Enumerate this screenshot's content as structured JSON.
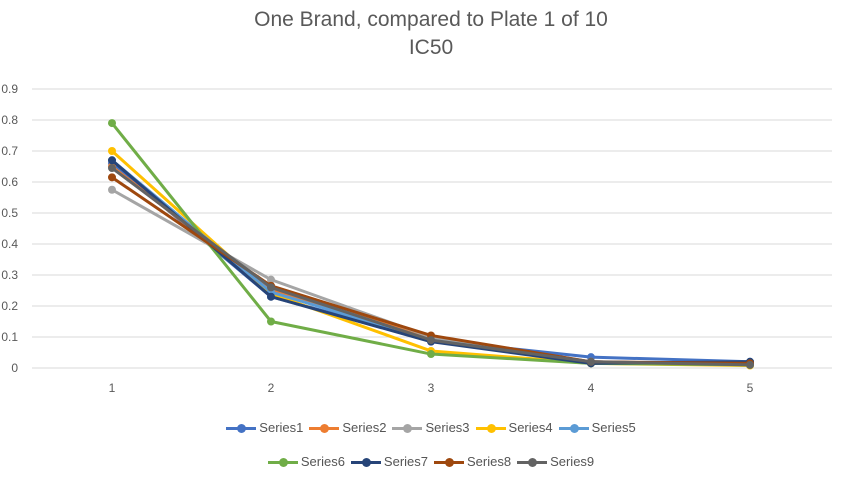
{
  "chart_data": {
    "type": "line",
    "title": "One Brand, compared to Plate 1 of 10",
    "subtitle": "IC50",
    "categories": [
      "1",
      "2",
      "3",
      "4",
      "5"
    ],
    "ylim": [
      0,
      0.9
    ],
    "yticks": [
      "0",
      "0.1",
      "0.2",
      "0.3",
      "0.4",
      "0.5",
      "0.6",
      "0.7",
      "0.8",
      "0.9"
    ],
    "grid": true,
    "legend_position": "bottom",
    "series": [
      {
        "name": "Series1",
        "color": "#4472C4",
        "values": [
          0.66,
          0.23,
          0.09,
          0.035,
          0.02
        ]
      },
      {
        "name": "Series2",
        "color": "#ED7D31",
        "values": [
          0.65,
          0.25,
          0.1,
          0.02,
          0.01
        ]
      },
      {
        "name": "Series3",
        "color": "#A5A5A5",
        "values": [
          0.575,
          0.285,
          0.1,
          0.02,
          0.01
        ]
      },
      {
        "name": "Series4",
        "color": "#FFC000",
        "values": [
          0.7,
          0.24,
          0.055,
          0.015,
          0.008
        ]
      },
      {
        "name": "Series5",
        "color": "#5B9BD5",
        "values": [
          0.67,
          0.245,
          0.09,
          0.02,
          0.012
        ]
      },
      {
        "name": "Series6",
        "color": "#70AD47",
        "values": [
          0.79,
          0.15,
          0.045,
          0.015,
          0.01
        ]
      },
      {
        "name": "Series7",
        "color": "#264478",
        "values": [
          0.67,
          0.23,
          0.085,
          0.015,
          0.02
        ]
      },
      {
        "name": "Series8",
        "color": "#9E480E",
        "values": [
          0.615,
          0.265,
          0.105,
          0.02,
          0.015
        ]
      },
      {
        "name": "Series9",
        "color": "#636363",
        "values": [
          0.645,
          0.26,
          0.09,
          0.02,
          0.01
        ]
      }
    ]
  }
}
